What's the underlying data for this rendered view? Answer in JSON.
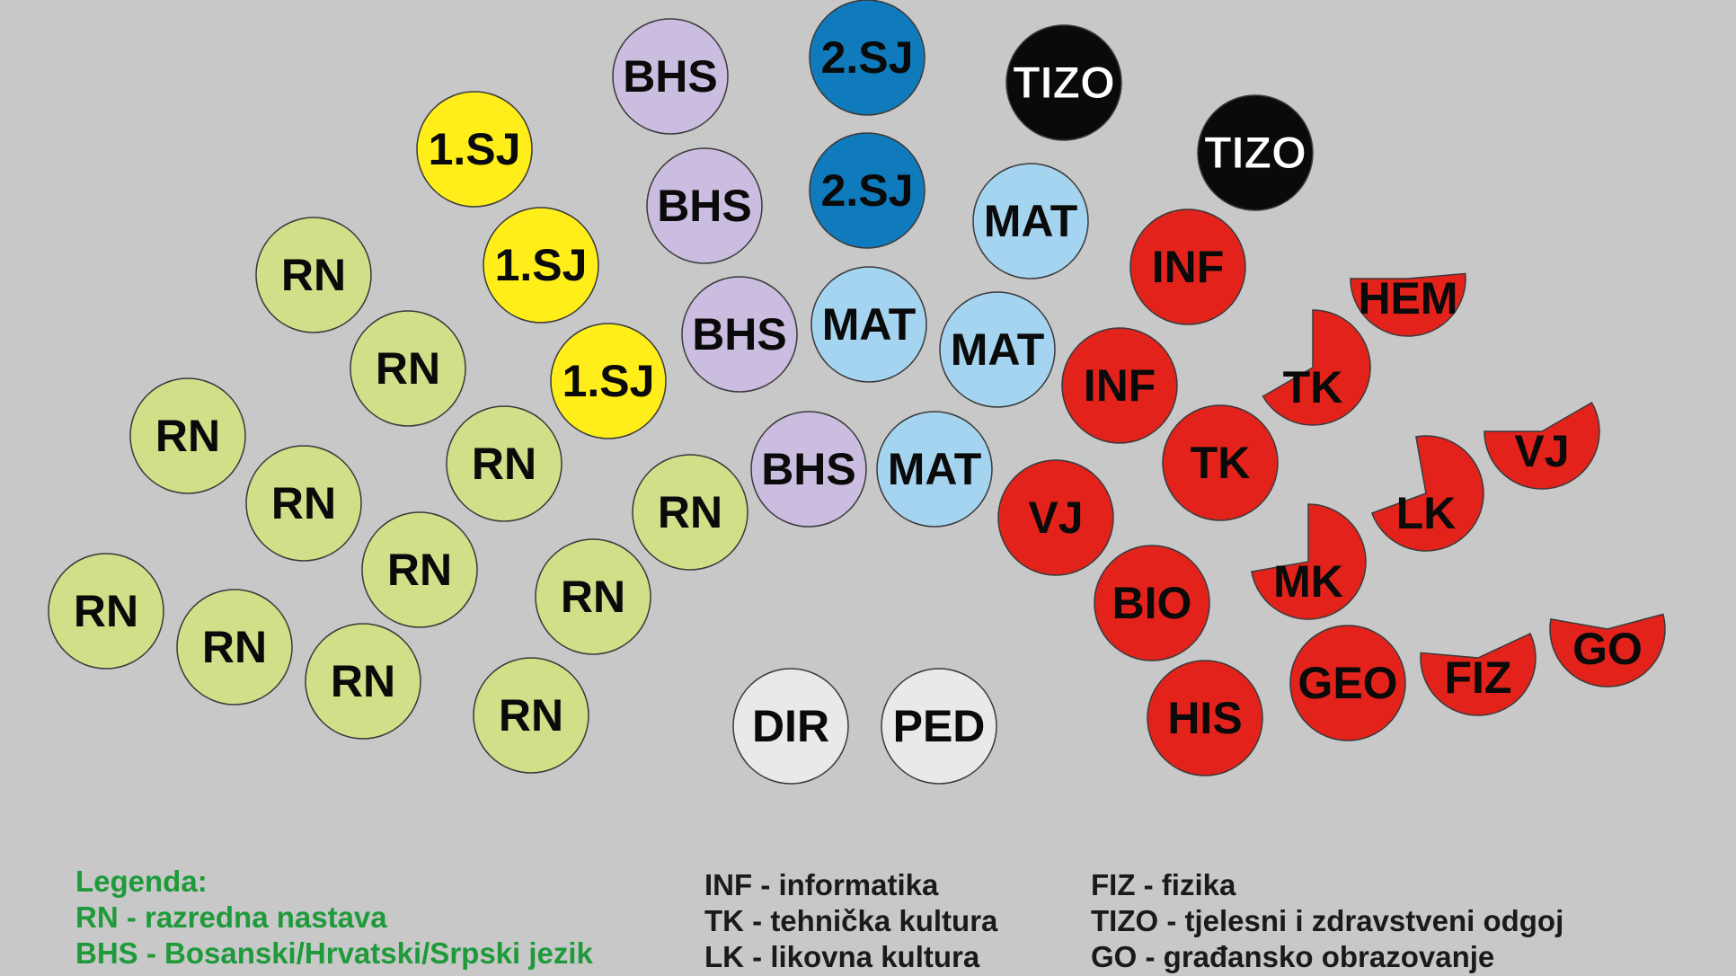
{
  "colors": {
    "background": "#c8c8c8",
    "RN": "#cfe089",
    "1.SJ": "#ffee1a",
    "BHS": "#cbbde0",
    "2.SJ": "#0f7bbd",
    "MAT": "#a5d4f0",
    "TIZO": "#0a0a0a",
    "red": "#e3231b",
    "staff": "#e9e9e9",
    "legend_green": "#1f9a3a",
    "legend_dark": "#1a1a1a"
  },
  "discs": [
    {
      "id": "rn-1",
      "label": "RN",
      "group": "RN"
    },
    {
      "id": "rn-2",
      "label": "RN",
      "group": "RN"
    },
    {
      "id": "rn-3",
      "label": "RN",
      "group": "RN"
    },
    {
      "id": "rn-4",
      "label": "RN",
      "group": "RN"
    },
    {
      "id": "rn-5",
      "label": "RN",
      "group": "RN"
    },
    {
      "id": "rn-6",
      "label": "RN",
      "group": "RN"
    },
    {
      "id": "rn-7",
      "label": "RN",
      "group": "RN"
    },
    {
      "id": "rn-8",
      "label": "RN",
      "group": "RN"
    },
    {
      "id": "rn-9",
      "label": "RN",
      "group": "RN"
    },
    {
      "id": "rn-10",
      "label": "RN",
      "group": "RN"
    },
    {
      "id": "rn-11",
      "label": "RN",
      "group": "RN"
    },
    {
      "id": "rn-12",
      "label": "RN",
      "group": "RN"
    },
    {
      "id": "1sj-1",
      "label": "1.SJ",
      "group": "1.SJ"
    },
    {
      "id": "1sj-2",
      "label": "1.SJ",
      "group": "1.SJ"
    },
    {
      "id": "1sj-3",
      "label": "1.SJ",
      "group": "1.SJ"
    },
    {
      "id": "bhs-1",
      "label": "BHS",
      "group": "BHS"
    },
    {
      "id": "bhs-2",
      "label": "BHS",
      "group": "BHS"
    },
    {
      "id": "bhs-3",
      "label": "BHS",
      "group": "BHS"
    },
    {
      "id": "bhs-4",
      "label": "BHS",
      "group": "BHS"
    },
    {
      "id": "2sj-1",
      "label": "2.SJ",
      "group": "2.SJ"
    },
    {
      "id": "2sj-2",
      "label": "2.SJ",
      "group": "2.SJ"
    },
    {
      "id": "mat-1",
      "label": "MAT",
      "group": "MAT"
    },
    {
      "id": "mat-2",
      "label": "MAT",
      "group": "MAT"
    },
    {
      "id": "mat-3",
      "label": "MAT",
      "group": "MAT"
    },
    {
      "id": "mat-4",
      "label": "MAT",
      "group": "MAT"
    },
    {
      "id": "tizo-1",
      "label": "TIZO",
      "group": "TIZO"
    },
    {
      "id": "tizo-2",
      "label": "TIZO",
      "group": "TIZO"
    },
    {
      "id": "inf-1",
      "label": "INF",
      "group": "red"
    },
    {
      "id": "inf-2",
      "label": "INF",
      "group": "red"
    },
    {
      "id": "tk-1",
      "label": "TK",
      "group": "red"
    },
    {
      "id": "vj-1",
      "label": "VJ",
      "group": "red"
    },
    {
      "id": "bio-1",
      "label": "BIO",
      "group": "red"
    },
    {
      "id": "his-1",
      "label": "HIS",
      "group": "red"
    },
    {
      "id": "geo-1",
      "label": "GEO",
      "group": "red"
    },
    {
      "id": "dir-1",
      "label": "DIR",
      "group": "staff"
    },
    {
      "id": "ped-1",
      "label": "PED",
      "group": "staff"
    }
  ],
  "partial_discs": [
    {
      "id": "hem-1",
      "label": "HEM",
      "group": "red"
    },
    {
      "id": "tk-2",
      "label": "TK",
      "group": "red"
    },
    {
      "id": "vj-2",
      "label": "VJ",
      "group": "red"
    },
    {
      "id": "lk-1",
      "label": "LK",
      "group": "red"
    },
    {
      "id": "mk-1",
      "label": "MK",
      "group": "red"
    },
    {
      "id": "fiz-1",
      "label": "FIZ",
      "group": "red"
    },
    {
      "id": "go-1",
      "label": "GO",
      "group": "red"
    }
  ],
  "legend": {
    "title": "Legenda:",
    "col1": [
      "RN - razredna nastava",
      "BHS - Bosanski/Hrvatski/Srpski jezik"
    ],
    "col2": [
      "INF - informatika",
      "TK - tehnička kultura",
      "LK - likovna kultura"
    ],
    "col3": [
      "FIZ - fizika",
      "TIZO - tjelesni i zdravstveni odgoj",
      "GO - građansko obrazovanje"
    ]
  }
}
